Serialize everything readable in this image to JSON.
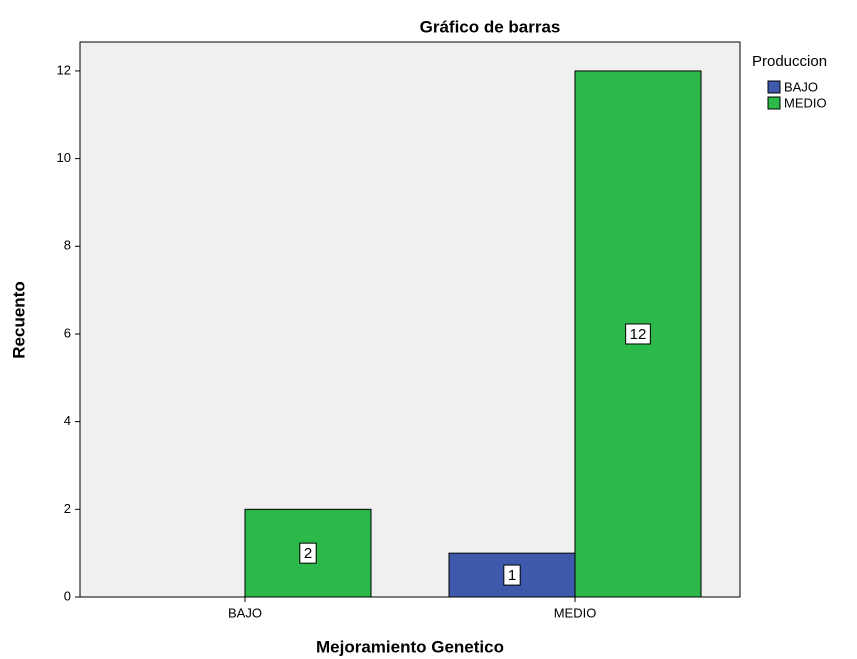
{
  "chart_data": {
    "type": "bar",
    "title": "Gráfico de barras",
    "x_label": "Mejoramiento Genetico",
    "y_label": "Recuento",
    "categories": [
      "BAJO",
      "MEDIO"
    ],
    "series": [
      {
        "name": "BAJO",
        "color": "#3e58ac",
        "values": [
          null,
          1
        ]
      },
      {
        "name": "MEDIO",
        "color": "#2db84a",
        "values": [
          2,
          12
        ]
      }
    ],
    "legend_title": "Produccion",
    "legend_position": "right",
    "ylim": [
      0,
      12.66
    ],
    "yticks": [
      0,
      2,
      4,
      6,
      8,
      10,
      12
    ],
    "grid": false
  }
}
